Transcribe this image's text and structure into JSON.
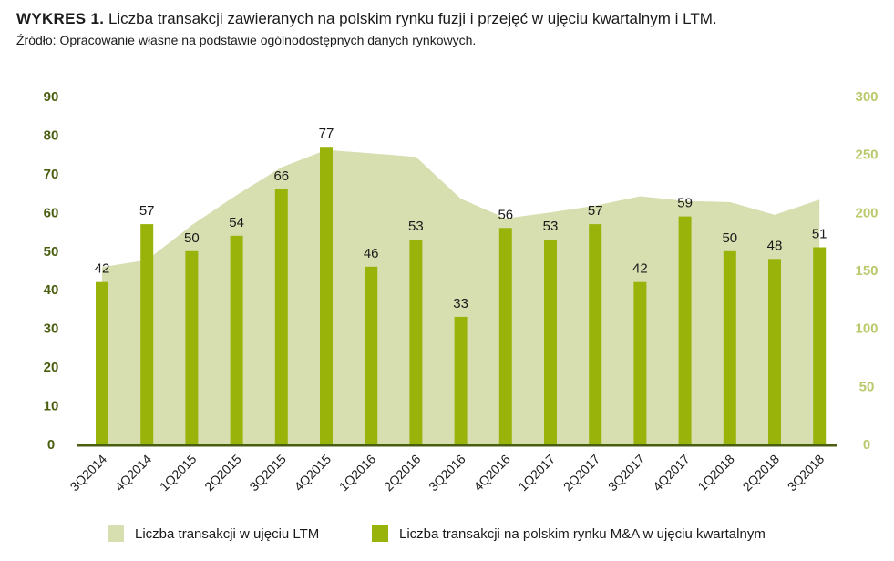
{
  "title": {
    "prefix": "WYKRES 1.",
    "text": "Liczba transakcji zawieranych na polskim rynku fuzji i przejęć w ujęciu kwartalnym i LTM.",
    "source": "Źródło: Opracowanie własne na podstawie ogólnodostępnych danych rynkowych."
  },
  "colors": {
    "bar": "#9ab30a",
    "area": "#d7deb0",
    "left_axis": "#4a5e0f",
    "right_axis": "#b9c96b",
    "baseline": "#4a5e0f"
  },
  "chart_data": {
    "type": "bar",
    "categories": [
      "3Q2014",
      "4Q2014",
      "1Q2015",
      "2Q2015",
      "3Q2015",
      "4Q2015",
      "1Q2016",
      "2Q2016",
      "3Q2016",
      "4Q2016",
      "1Q2017",
      "2Q2017",
      "3Q2017",
      "4Q2017",
      "1Q2018",
      "2Q2018",
      "3Q2018"
    ],
    "series": [
      {
        "name": "Liczba transakcji na polskim rynku M&A w ujęciu kwartalnym",
        "type": "bar",
        "axis": "left",
        "values": [
          42,
          57,
          50,
          54,
          66,
          77,
          46,
          53,
          33,
          56,
          53,
          57,
          42,
          59,
          50,
          48,
          51
        ]
      },
      {
        "name": "Liczba transakcji w ujęciu LTM",
        "type": "area",
        "axis": "right",
        "values": [
          153,
          159,
          189,
          215,
          239,
          254,
          251,
          248,
          212,
          195,
          200,
          206,
          214,
          210,
          209,
          198,
          211
        ]
      }
    ],
    "left_axis": {
      "ylim": [
        0,
        90
      ],
      "ticks": [
        "0",
        "10",
        "20",
        "30",
        "40",
        "50",
        "60",
        "70",
        "80",
        "90"
      ]
    },
    "right_axis": {
      "ylim": [
        0,
        300
      ],
      "ticks": [
        "0",
        "50",
        "100",
        "150",
        "200",
        "250",
        "300"
      ]
    },
    "grid": false,
    "legend_position": "bottom"
  },
  "legend": [
    {
      "label": "Liczba transakcji w ujęciu LTM"
    },
    {
      "label": "Liczba transakcji na polskim rynku M&A w ujęciu kwartalnym"
    }
  ]
}
